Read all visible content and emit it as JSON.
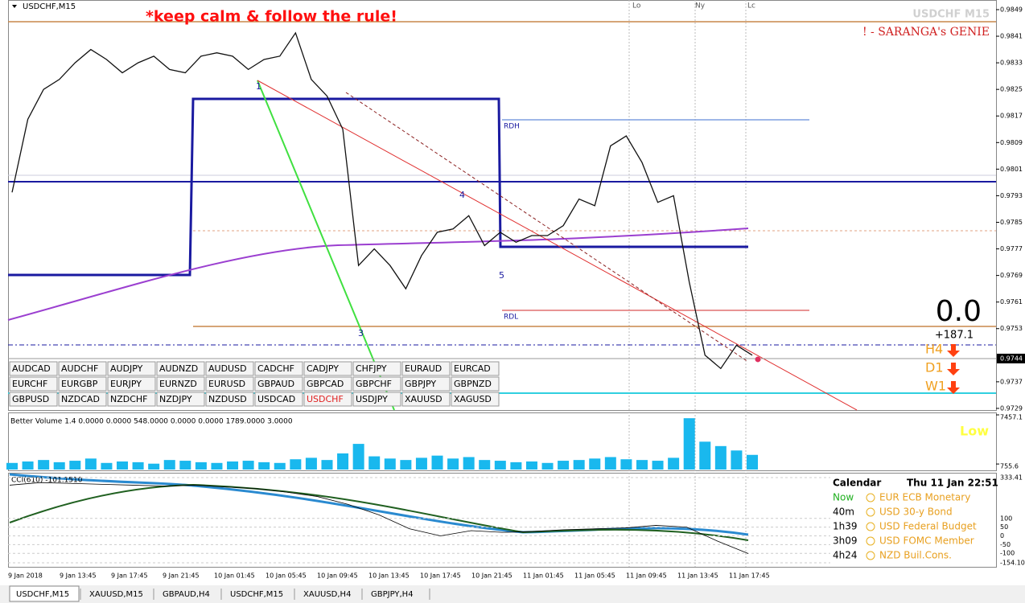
{
  "header": {
    "symbol": "USDCHF,M15",
    "slogan": "*keep calm & follow the rule!",
    "watermark": "USDCHF M15",
    "brand": "! - SARANGA's GENIE"
  },
  "sessions": [
    "Lo",
    "Ny",
    "Lc"
  ],
  "price_chart": {
    "type": "line",
    "color": "#111111",
    "values": [
      0.9794,
      0.9816,
      0.9825,
      0.9828,
      0.9833,
      0.9837,
      0.9834,
      0.983,
      0.9833,
      0.9835,
      0.9831,
      0.983,
      0.9835,
      0.9836,
      0.9835,
      0.9831,
      0.9834,
      0.9835,
      0.9842,
      0.9828,
      0.9823,
      0.9813,
      0.9772,
      0.9777,
      0.9772,
      0.9765,
      0.9775,
      0.9782,
      0.9783,
      0.9787,
      0.9778,
      0.9782,
      0.9779,
      0.9781,
      0.9781,
      0.9784,
      0.9792,
      0.979,
      0.9808,
      0.9811,
      0.9803,
      0.9791,
      0.9793,
      0.9767,
      0.9745,
      0.9741,
      0.9748,
      0.9745
    ],
    "ylim": [
      0.97285,
      0.98519
    ],
    "yticks": [
      0.9849,
      0.9841,
      0.9833,
      0.9825,
      0.9817,
      0.9809,
      0.9801,
      0.9793,
      0.9785,
      0.9777,
      0.9769,
      0.9761,
      0.9753,
      0.9737,
      0.9729
    ],
    "current_price": 0.9744,
    "level_labels": [
      "RDH",
      "RDL"
    ],
    "wave_labels": [
      "1",
      "3",
      "4",
      "5"
    ]
  },
  "signal": {
    "value_text": "0.0",
    "points": "+187.1",
    "timeframes": [
      "H4",
      "D1",
      "W1"
    ]
  },
  "symbols": [
    [
      "AUDCAD",
      "AUDCHF",
      "AUDJPY",
      "AUDNZD",
      "AUDUSD",
      "CADCHF",
      "CADJPY",
      "CHFJPY",
      "EURAUD",
      "EURCAD"
    ],
    [
      "EURCHF",
      "EURGBP",
      "EURJPY",
      "EURNZD",
      "EURUSD",
      "GBPAUD",
      "GBPCAD",
      "GBPCHF",
      "GBPJPY",
      "GBPNZD"
    ],
    [
      "GBPUSD",
      "NZDCAD",
      "NZDCHF",
      "NZDJPY",
      "NZDUSD",
      "USDCAD",
      "USDCHF",
      "USDJPY",
      "XAUUSD",
      "XAGUSD"
    ]
  ],
  "highlighted_symbol": "USDCHF",
  "volume": {
    "type": "bar",
    "label": "Better Volume 1.4 0.0000 0.0000 548.0000 0.0000 0.0000 1789.0000 3.0000",
    "status": "Low",
    "color": "#19b8ee",
    "values": [
      900,
      1100,
      1300,
      1000,
      1200,
      1500,
      900,
      1100,
      1000,
      800,
      1300,
      1200,
      1000,
      900,
      1100,
      1200,
      1000,
      900,
      1400,
      1600,
      1300,
      2200,
      3500,
      1800,
      1500,
      1300,
      1600,
      1900,
      1500,
      1700,
      1300,
      1200,
      1000,
      1100,
      900,
      1200,
      1300,
      1500,
      1700,
      1400,
      1300,
      1200,
      1600,
      7000,
      3800,
      3200,
      2600,
      2000
    ],
    "ylim": [
      0,
      7457.1
    ],
    "yticks": [
      7457.1,
      755.6
    ]
  },
  "cci": {
    "type": "line",
    "label": "CCI(610) -101.1510",
    "color": "#000000",
    "values": [
      290,
      305,
      300,
      295,
      290,
      285,
      290,
      280,
      270,
      250,
      225,
      180,
      120,
      40,
      0,
      30,
      20,
      25,
      35,
      40,
      45,
      60,
      50,
      -30,
      -101
    ],
    "ylim": [
      -154.1,
      333.41
    ],
    "yticks": [
      333.41,
      100,
      50,
      0,
      -50,
      -100,
      {
        "value": -154.1,
        "label": "-154.10"
      }
    ]
  },
  "calendar": {
    "title": "Calendar",
    "datetime": "Thu 11 Jan 22:51",
    "events": [
      {
        "time": "Now",
        "event": "EUR ECB Monetary"
      },
      {
        "time": "40m",
        "event": "USD 30-y Bond"
      },
      {
        "time": "1h39",
        "event": "USD Federal Budget"
      },
      {
        "time": "3h09",
        "event": "USD FOMC Member"
      },
      {
        "time": "4h24",
        "event": "NZD Buil.Cons."
      }
    ]
  },
  "time_axis": [
    "9 Jan 2018",
    "9 Jan 13:45",
    "9 Jan 17:45",
    "9 Jan 21:45",
    "10 Jan 01:45",
    "10 Jan 05:45",
    "10 Jan 09:45",
    "10 Jan 13:45",
    "10 Jan 17:45",
    "10 Jan 21:45",
    "11 Jan 01:45",
    "11 Jan 05:45",
    "11 Jan 09:45",
    "11 Jan 13:45",
    "11 Jan 17:45"
  ],
  "tabs": [
    "USDCHF,M15",
    "XAUUSD,M15",
    "GBPAUD,H4",
    "USDCHF,M15",
    "XAUUSD,H4",
    "GBPJPY,H4"
  ]
}
